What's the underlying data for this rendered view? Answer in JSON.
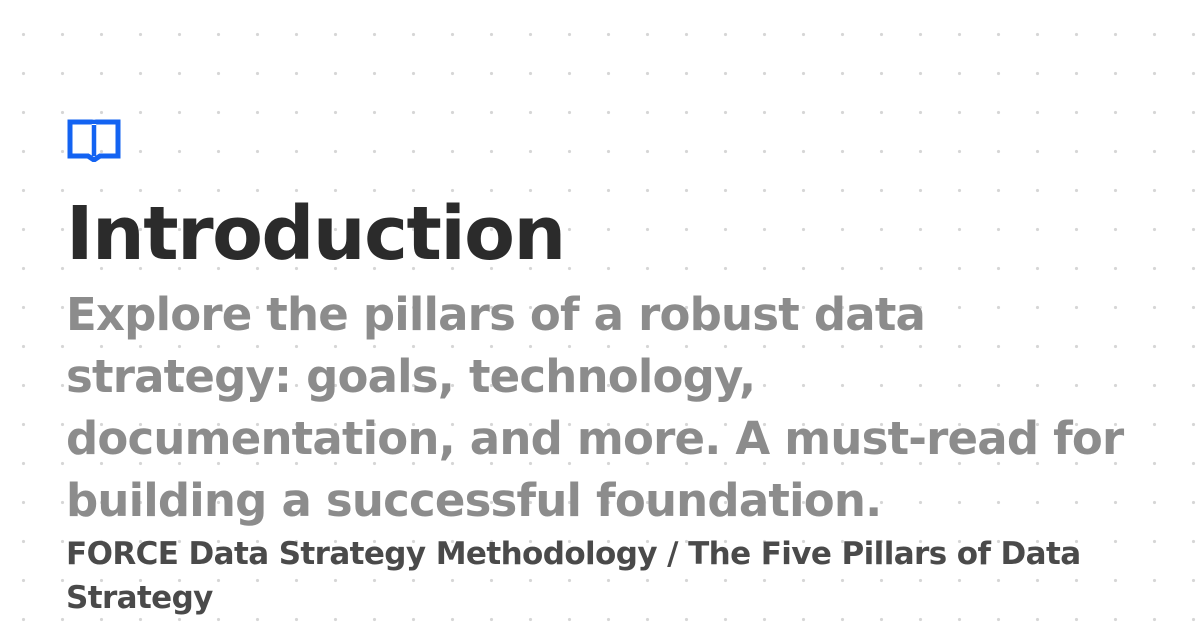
{
  "page": {
    "title": "Introduction",
    "description": "Explore the pillars of a robust data strategy: goals, technology, documentation, and more. A must-read for building a successful foundation.",
    "breadcrumb": "FORCE Data Strategy Methodology / The Five Pillars of Data Strategy"
  },
  "logo": {
    "icon": "book-icon",
    "color": "#1363f2"
  },
  "colors": {
    "title": "#2b2b2b",
    "description": "#8c8c8c",
    "breadcrumb": "#4a4a4a",
    "dots": "#d6d6d6"
  }
}
